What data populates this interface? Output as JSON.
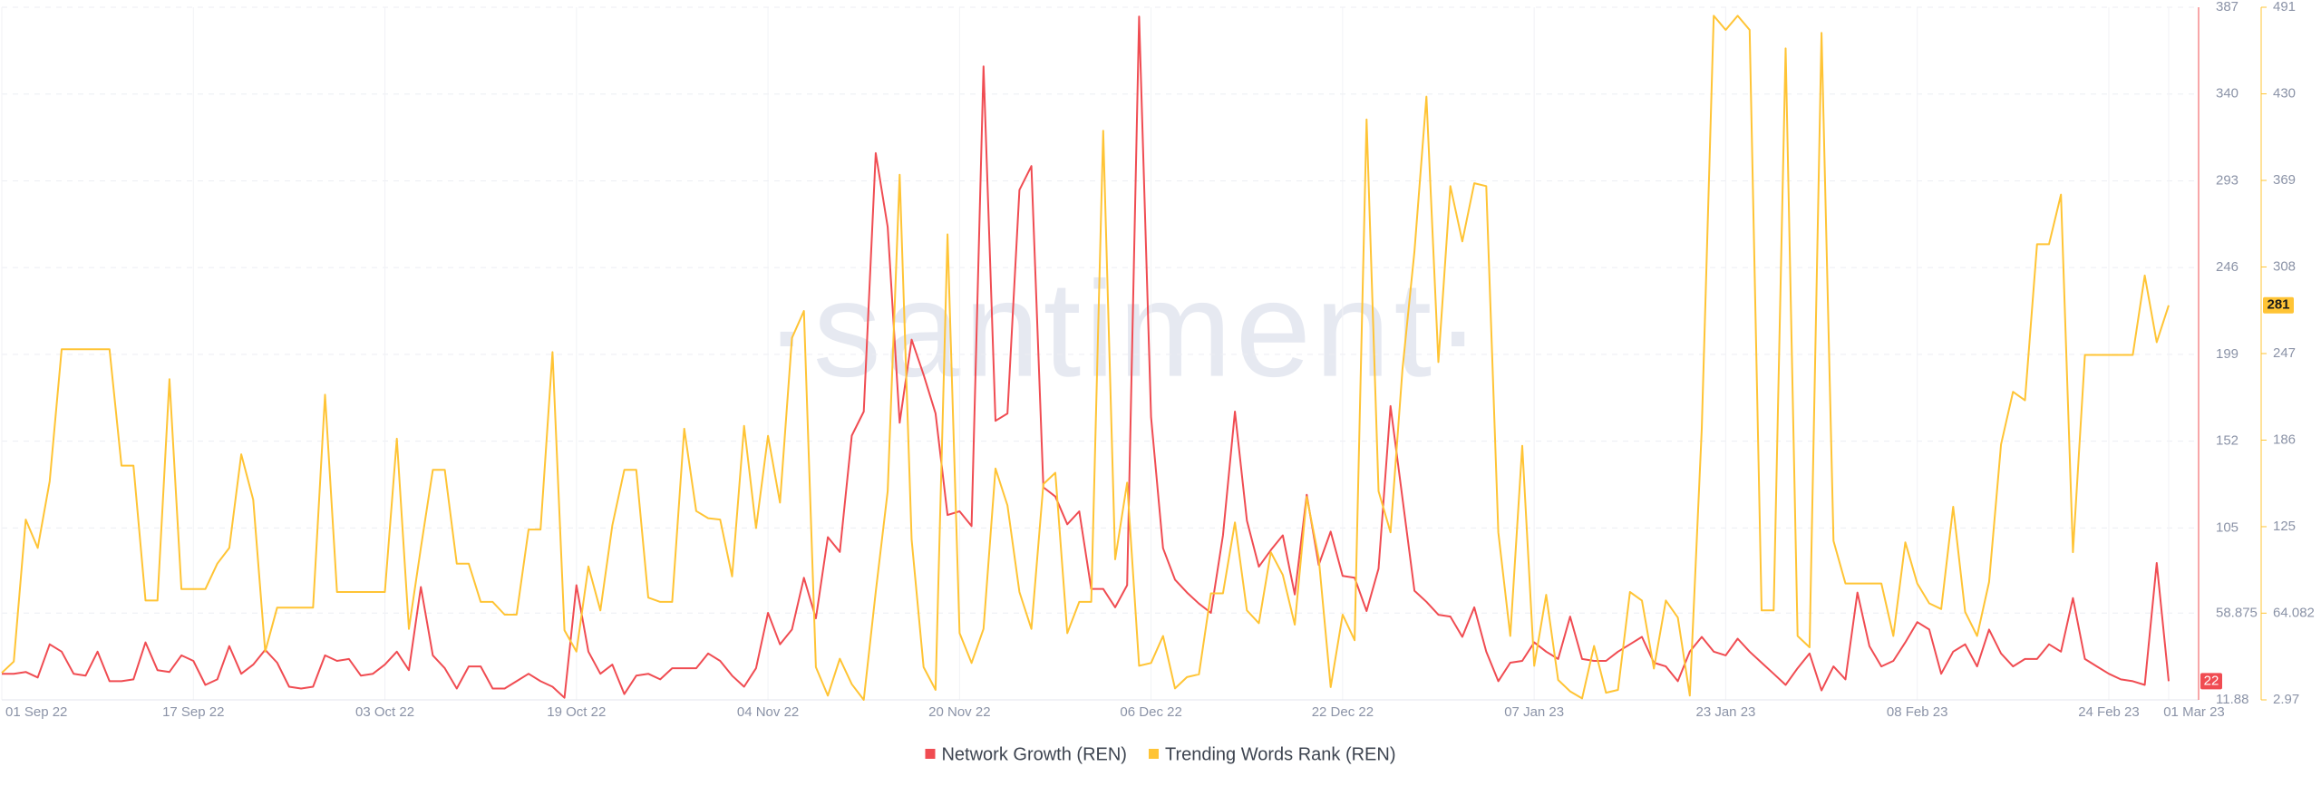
{
  "chart_data": {
    "type": "line",
    "watermark": "·santiment·",
    "categories": [
      "01 Sep 22",
      null,
      null,
      null,
      null,
      null,
      null,
      null,
      null,
      null,
      null,
      null,
      null,
      null,
      null,
      null,
      "17 Sep 22",
      null,
      null,
      null,
      null,
      null,
      null,
      null,
      null,
      null,
      null,
      null,
      null,
      null,
      null,
      null,
      "03 Oct 22",
      null,
      null,
      null,
      null,
      null,
      null,
      null,
      null,
      null,
      null,
      null,
      null,
      null,
      null,
      null,
      "19 Oct 22",
      null,
      null,
      null,
      null,
      null,
      null,
      null,
      null,
      null,
      null,
      null,
      null,
      null,
      null,
      null,
      "04 Nov 22",
      null,
      null,
      null,
      null,
      null,
      null,
      null,
      null,
      null,
      null,
      null,
      null,
      null,
      null,
      null,
      "20 Nov 22",
      null,
      null,
      null,
      null,
      null,
      null,
      null,
      null,
      null,
      null,
      null,
      null,
      null,
      null,
      null,
      "06 Dec 22",
      null,
      null,
      null,
      null,
      null,
      null,
      null,
      null,
      null,
      null,
      null,
      null,
      null,
      null,
      null,
      "22 Dec 22",
      null,
      null,
      null,
      null,
      null,
      null,
      null,
      null,
      null,
      null,
      null,
      null,
      null,
      null,
      null,
      "07 Jan 23",
      null,
      null,
      null,
      null,
      null,
      null,
      null,
      null,
      null,
      null,
      null,
      null,
      null,
      null,
      null,
      "23 Jan 23",
      null,
      null,
      null,
      null,
      null,
      null,
      null,
      null,
      null,
      null,
      null,
      null,
      null,
      null,
      null,
      "08 Feb 23",
      null,
      null,
      null,
      null,
      null,
      null,
      null,
      null,
      null,
      null,
      null,
      null,
      null,
      null,
      null,
      "24 Feb 23",
      null,
      null,
      null,
      null,
      "01 Mar 23"
    ],
    "series": [
      {
        "name": "Network Growth (REN)",
        "color": "#f04c52",
        "axis": "y",
        "values": [
          26,
          26,
          27,
          24,
          42,
          38,
          26,
          25,
          38,
          22,
          22,
          23,
          43,
          28,
          27,
          36,
          33,
          20,
          23,
          41,
          26,
          31,
          39,
          32,
          19,
          18,
          19,
          36,
          33,
          34,
          25,
          26,
          31,
          38,
          28,
          73,
          36,
          29,
          18,
          30,
          30,
          18,
          18,
          22,
          26,
          22,
          19,
          13,
          74,
          38,
          26,
          31,
          15,
          25,
          26,
          23,
          29,
          29,
          29,
          37,
          33,
          25,
          19,
          29,
          59,
          42,
          50,
          78,
          56,
          100,
          92,
          155,
          168,
          308,
          268,
          162,
          207,
          188,
          167,
          112,
          114,
          106,
          355,
          163,
          167,
          288,
          301,
          127,
          122,
          107,
          114,
          72,
          72,
          62,
          74,
          382,
          165,
          94,
          77,
          70,
          64,
          59,
          101,
          168,
          109,
          84,
          93,
          101,
          69,
          123,
          85,
          103,
          79,
          78,
          60,
          83,
          171,
          121,
          71,
          65,
          58,
          57,
          46,
          62,
          38,
          22,
          32,
          33,
          43,
          38,
          34,
          57,
          34,
          33,
          33,
          38,
          42,
          46,
          32,
          30,
          22,
          38,
          46,
          38,
          36,
          45,
          38,
          32,
          26,
          20,
          29,
          37,
          17,
          30,
          23,
          70,
          41,
          30,
          33,
          43,
          54,
          50,
          26,
          38,
          42,
          30,
          50,
          37,
          30,
          34,
          34,
          42,
          38,
          67,
          34,
          30,
          26,
          23,
          22,
          20,
          86,
          22
        ]
      },
      {
        "name": "Trending Words Rank (REN)",
        "color": "#ffc435",
        "axis": "y2",
        "values": [
          22,
          30,
          130,
          110,
          157,
          250,
          250,
          250,
          250,
          250,
          168,
          168,
          73,
          73,
          229,
          81,
          81,
          81,
          99,
          110,
          176,
          144,
          37,
          68,
          68,
          68,
          68,
          218,
          79,
          79,
          79,
          79,
          79,
          187,
          53,
          110,
          165,
          165,
          99,
          99,
          72,
          72,
          63,
          63,
          123,
          123,
          248,
          52,
          37,
          97,
          66,
          126,
          165,
          165,
          75,
          72,
          72,
          194,
          136,
          131,
          130,
          90,
          196,
          124,
          189,
          142,
          258,
          277,
          26,
          6,
          32,
          14,
          3,
          79,
          150,
          373,
          116,
          26,
          10,
          331,
          50,
          29,
          53,
          166,
          140,
          79,
          53,
          155,
          163,
          50,
          72,
          72,
          404,
          102,
          156,
          27,
          29,
          48,
          11,
          19,
          21,
          78,
          78,
          128,
          66,
          57,
          107,
          91,
          56,
          146,
          103,
          12,
          63,
          45,
          412,
          150,
          121,
          236,
          319,
          428,
          241,
          365,
          326,
          367,
          365,
          121,
          48,
          182,
          27,
          77,
          17,
          9,
          4,
          41,
          8,
          10,
          79,
          73,
          25,
          73,
          61,
          6,
          194,
          485,
          475,
          485,
          475,
          66,
          66,
          462,
          48,
          40,
          473,
          115,
          85,
          85,
          85,
          85,
          48,
          114,
          85,
          71,
          67,
          139,
          65,
          48,
          86,
          183,
          220,
          214,
          324,
          324,
          359,
          107,
          246,
          246,
          246,
          246,
          246,
          302,
          255,
          281
        ]
      }
    ],
    "ylim": [
      11.88,
      387
    ],
    "yticks": [
      387,
      340,
      293,
      246,
      199,
      152,
      105,
      58.875,
      11.88
    ],
    "y2lim": [
      2.97,
      491
    ],
    "y2ticks": [
      491,
      430,
      369,
      308,
      247,
      186,
      125,
      64.082,
      2.97
    ],
    "grid": true
  }
}
